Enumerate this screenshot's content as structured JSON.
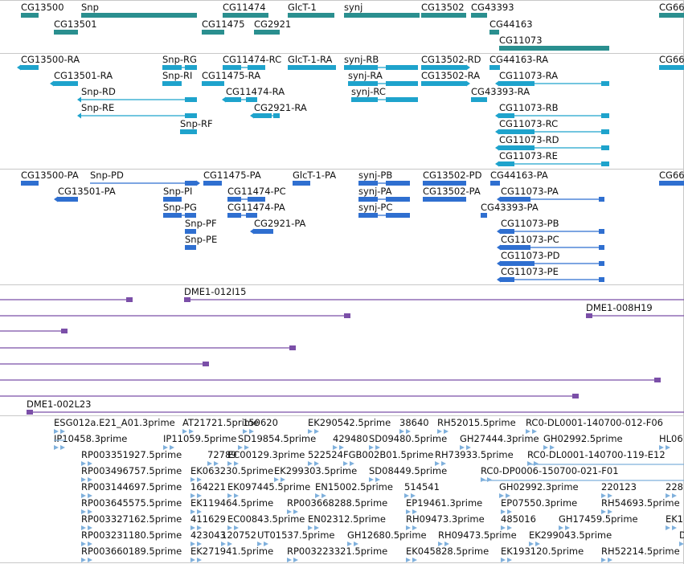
{
  "colors": {
    "gene": "#2a8f8f",
    "transcript": "#1ea3cc",
    "protein": "#2f6fd0",
    "clone": "#7b4fa8",
    "est": "#7fb0dc",
    "separator": "#c8c8c8"
  },
  "tracks": {
    "genes": [
      {
        "label": "CG13500"
      },
      {
        "label": "Snp"
      },
      {
        "label": "CG11474"
      },
      {
        "label": "GlcT-1"
      },
      {
        "label": "synj"
      },
      {
        "label": "CG13502"
      },
      {
        "label": "CG43393"
      },
      {
        "label": "CG66"
      },
      {
        "label": "CG13501"
      },
      {
        "label": "CG11475"
      },
      {
        "label": "CG2921"
      },
      {
        "label": "CG44163"
      },
      {
        "label": "CG11073"
      }
    ],
    "transcripts": [
      {
        "label": "CG13500-RA"
      },
      {
        "label": "Snp-RG"
      },
      {
        "label": "CG11474-RC"
      },
      {
        "label": "GlcT-1-RA"
      },
      {
        "label": "synj-RB"
      },
      {
        "label": "CG13502-RD"
      },
      {
        "label": "CG44163-RA"
      },
      {
        "label": "CG66"
      },
      {
        "label": "CG13501-RA"
      },
      {
        "label": "Snp-RI"
      },
      {
        "label": "CG11475-RA"
      },
      {
        "label": "synj-RA"
      },
      {
        "label": "CG13502-RA"
      },
      {
        "label": "CG11073-RA"
      },
      {
        "label": "Snp-RD"
      },
      {
        "label": "CG11474-RA"
      },
      {
        "label": "synj-RC"
      },
      {
        "label": "CG43393-RA"
      },
      {
        "label": "Snp-RE"
      },
      {
        "label": "CG2921-RA"
      },
      {
        "label": "CG11073-RB"
      },
      {
        "label": "Snp-RF"
      },
      {
        "label": "CG11073-RC"
      },
      {
        "label": "CG11073-RD"
      },
      {
        "label": "CG11073-RE"
      }
    ],
    "proteins": [
      {
        "label": "CG13500-PA"
      },
      {
        "label": "Snp-PD"
      },
      {
        "label": "CG11475-PA"
      },
      {
        "label": "GlcT-1-PA"
      },
      {
        "label": "synj-PB"
      },
      {
        "label": "CG13502-PD"
      },
      {
        "label": "CG44163-PA"
      },
      {
        "label": "CG66"
      },
      {
        "label": "CG13501-PA"
      },
      {
        "label": "Snp-PI"
      },
      {
        "label": "CG11474-PC"
      },
      {
        "label": "synj-PA"
      },
      {
        "label": "CG13502-PA"
      },
      {
        "label": "CG11073-PA"
      },
      {
        "label": "Snp-PG"
      },
      {
        "label": "CG11474-PA"
      },
      {
        "label": "synj-PC"
      },
      {
        "label": "CG43393-PA"
      },
      {
        "label": "Snp-PF"
      },
      {
        "label": "CG2921-PA"
      },
      {
        "label": "CG11073-PB"
      },
      {
        "label": "Snp-PE"
      },
      {
        "label": "CG11073-PC"
      },
      {
        "label": "CG11073-PD"
      },
      {
        "label": "CG11073-PE"
      }
    ],
    "clones": [
      {
        "label": "DME1-012I15"
      },
      {
        "label": "DME1-008H19"
      },
      {
        "label": "DME1-002L23"
      }
    ],
    "ests": [
      {
        "label": "ESG012a.E21_A01.3prime"
      },
      {
        "label": "AT21721.5prime"
      },
      {
        "label": "150620"
      },
      {
        "label": "EK290542.5prime"
      },
      {
        "label": "38640"
      },
      {
        "label": "RH52015.5prime"
      },
      {
        "label": "RC0-DL0001-140700-012-F06"
      },
      {
        "label": "IP10458.3prime"
      },
      {
        "label": "IP11059.5prime"
      },
      {
        "label": "SD19854.5prime"
      },
      {
        "label": "429480"
      },
      {
        "label": "SD09480.5prime"
      },
      {
        "label": "GH27444.3prime"
      },
      {
        "label": "GH02992.5prime"
      },
      {
        "label": "HL06"
      },
      {
        "label": "RP003351927.5prime"
      },
      {
        "label": "72789"
      },
      {
        "label": "EC00129.3prime"
      },
      {
        "label": "522524"
      },
      {
        "label": "FGB002B01.5prime"
      },
      {
        "label": "RH73933.5prime"
      },
      {
        "label": "RC0-DL0001-140700-119-E12"
      },
      {
        "label": "RP003496757.5prime"
      },
      {
        "label": "EK063230.5prime"
      },
      {
        "label": "EK299303.5prime"
      },
      {
        "label": "SD08449.5prime"
      },
      {
        "label": "RC0-DP0006-150700-021-F01"
      },
      {
        "label": "RP003144697.5prime"
      },
      {
        "label": "164221"
      },
      {
        "label": "EK097445.5prime"
      },
      {
        "label": "EN15002.5prime"
      },
      {
        "label": "514541"
      },
      {
        "label": "GH02992.3prime"
      },
      {
        "label": "220123"
      },
      {
        "label": "228"
      },
      {
        "label": "RP003645575.5prime"
      },
      {
        "label": "EK119464.5prime"
      },
      {
        "label": "RP003668288.5prime"
      },
      {
        "label": "EP19461.3prime"
      },
      {
        "label": "EP07550.3prime"
      },
      {
        "label": "RH54693.5prime"
      },
      {
        "label": "RP003327162.5prime"
      },
      {
        "label": "411629"
      },
      {
        "label": "EC00843.5prime"
      },
      {
        "label": "EN02312.5prime"
      },
      {
        "label": "RH09473.3prime"
      },
      {
        "label": "485016"
      },
      {
        "label": "GH17459.5prime"
      },
      {
        "label": "EK1"
      },
      {
        "label": "RP003231180.5prime"
      },
      {
        "label": "423043"
      },
      {
        "label": "120752"
      },
      {
        "label": "UT01537.5prime"
      },
      {
        "label": "GH12680.5prime"
      },
      {
        "label": "RH09473.5prime"
      },
      {
        "label": "EK299043.5prime"
      },
      {
        "label": "D"
      },
      {
        "label": "RP003660189.5prime"
      },
      {
        "label": "EK271941.5prime"
      },
      {
        "label": "RP003223321.5prime"
      },
      {
        "label": "EK045828.5prime"
      },
      {
        "label": "EK193120.5prime"
      },
      {
        "label": "RH52214.5prime"
      }
    ]
  }
}
